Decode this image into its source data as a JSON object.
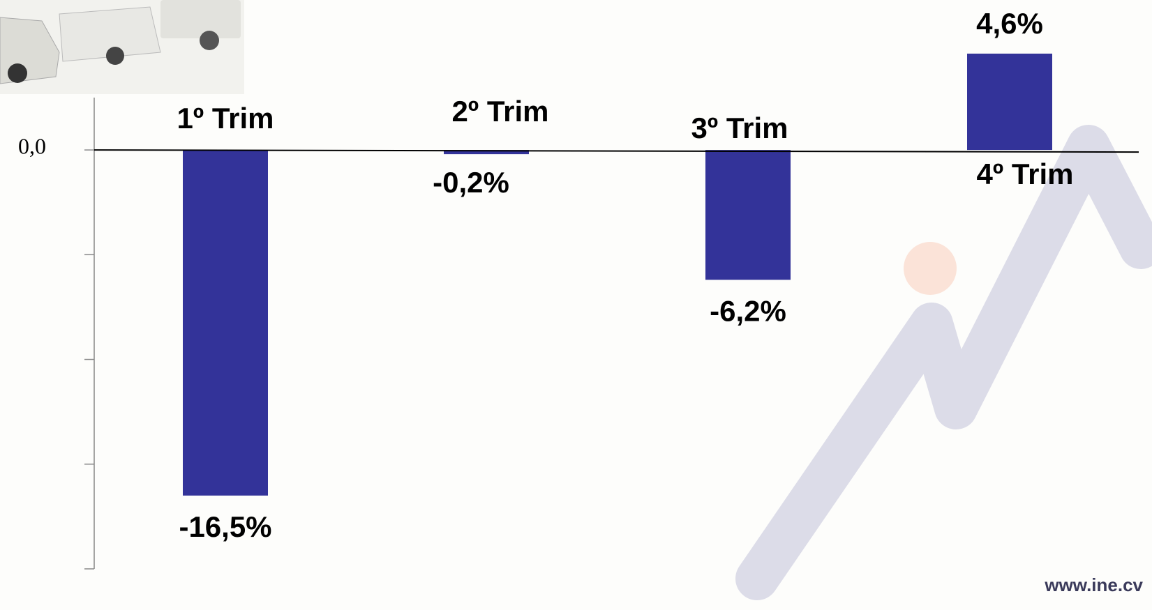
{
  "chart_data": {
    "type": "bar",
    "categories": [
      "1º Trim",
      "2º Trim",
      "3º Trim",
      "4º Trim"
    ],
    "values": [
      -16.5,
      -0.2,
      -6.2,
      4.6
    ],
    "value_labels": [
      "-16,5%",
      "-0,2%",
      "-6,2%",
      "4,6%"
    ],
    "color": "#333399",
    "ylim": [
      -20,
      2.5
    ],
    "yticks": [
      {
        "value": 0,
        "label": "0,0"
      },
      {
        "value": -5,
        "label": null
      },
      {
        "value": -10,
        "label": null
      },
      {
        "value": -15,
        "label": null
      },
      {
        "value": -20,
        "label": null
      }
    ],
    "source": "www.ine.cv"
  }
}
